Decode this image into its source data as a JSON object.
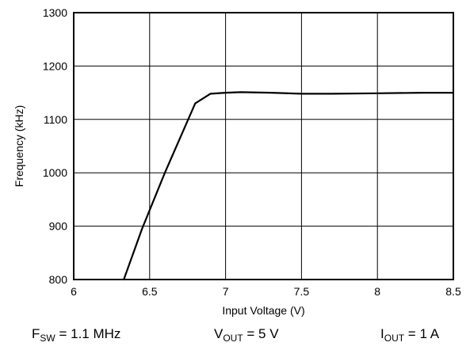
{
  "chart_data": {
    "type": "line",
    "title": "",
    "xlabel": "Input Voltage (V)",
    "ylabel": "Frequency (kHz)",
    "xlim": [
      6,
      8.5
    ],
    "ylim": [
      800,
      1300
    ],
    "x_ticks": [
      "6",
      "6.5",
      "7",
      "7.5",
      "8",
      "8.5"
    ],
    "y_ticks": [
      "800",
      "900",
      "1000",
      "1100",
      "1200",
      "1300"
    ],
    "grid": true,
    "series": [
      {
        "color": "#000000",
        "x": [
          6.33,
          6.45,
          6.6,
          6.8,
          6.9,
          7.0,
          7.1,
          7.3,
          7.5,
          7.7,
          8.0,
          8.3,
          8.5
        ],
        "y": [
          800,
          895,
          1000,
          1130,
          1148,
          1150,
          1151,
          1150,
          1148,
          1148,
          1149,
          1150,
          1150
        ]
      }
    ]
  },
  "captions": {
    "fsw_main": "F",
    "fsw_sub": "SW",
    "fsw_value": " = 1.1 MHz",
    "vout_main": "V",
    "vout_sub": "OUT",
    "vout_value": " = 5 V",
    "iout_main": "I",
    "iout_sub": "OUT",
    "iout_value": " = 1 A"
  }
}
